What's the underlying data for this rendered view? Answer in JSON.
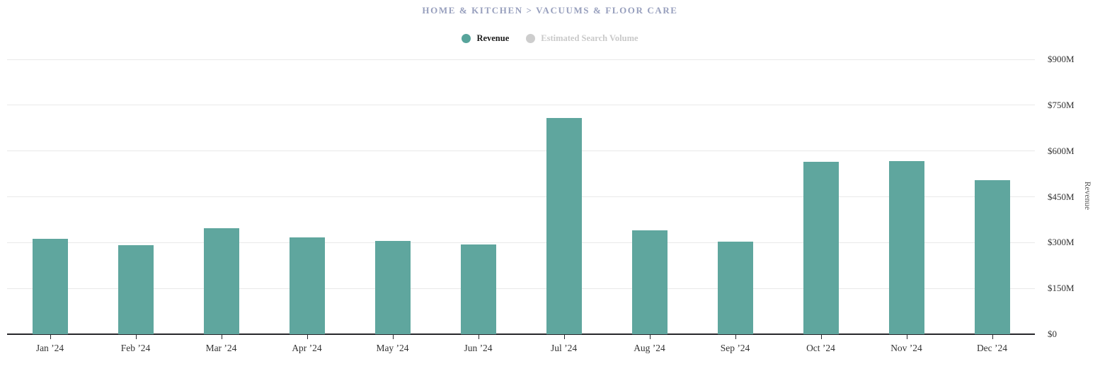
{
  "header": {
    "breadcrumb": "HOME & KITCHEN > VACUUMS & FLOOR CARE"
  },
  "legend": {
    "items": [
      {
        "label": "Revenue",
        "dot_color": "#57a49b",
        "text_color": "#1d1d1d",
        "active": true
      },
      {
        "label": "Estimated Search Volume",
        "dot_color": "#cdcdcd",
        "text_color": "#c9c9c9",
        "active": false
      }
    ]
  },
  "chart_data": {
    "type": "bar",
    "title": "HOME & KITCHEN > VACUUMS & FLOOR CARE",
    "categories": [
      "Jan ’24",
      "Feb ’24",
      "Mar ’24",
      "Apr ’24",
      "May ’24",
      "Jun ’24",
      "Jul ’24",
      "Aug ’24",
      "Sep ’24",
      "Oct ’24",
      "Nov ’24",
      "Dec ’24"
    ],
    "series": [
      {
        "name": "Revenue",
        "color": "#5fa69e",
        "values": [
          313,
          292,
          346,
          316,
          305,
          295,
          707,
          341,
          303,
          564,
          566,
          505
        ]
      }
    ],
    "xlabel": "",
    "ylabel": "Revenue",
    "ylim": [
      0,
      900
    ],
    "yticks": [
      {
        "value": 0,
        "label": "$0"
      },
      {
        "value": 150,
        "label": "$150M"
      },
      {
        "value": 300,
        "label": "$300M"
      },
      {
        "value": 450,
        "label": "$450M"
      },
      {
        "value": 600,
        "label": "$600M"
      },
      {
        "value": 750,
        "label": "$750M"
      },
      {
        "value": 900,
        "label": "$900M"
      }
    ],
    "value_unit": "USD millions",
    "grid": true,
    "legend_position": "top"
  },
  "colors": {
    "bar": "#5fa69e",
    "title": "#979fbd",
    "gridline": "#e9e9e9",
    "axis": "#26262b",
    "tick_text": "#333333"
  }
}
